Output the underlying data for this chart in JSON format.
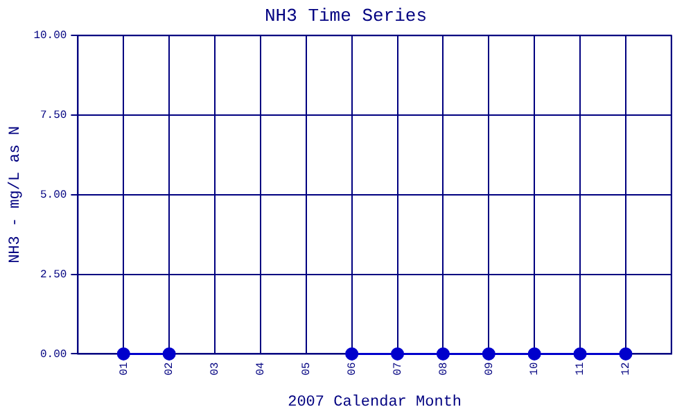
{
  "chart_data": {
    "type": "line",
    "title": "NH3 Time Series",
    "xlabel": "2007 Calendar Month",
    "ylabel": "NH3 - mg/L as N",
    "categories": [
      "01",
      "02",
      "03",
      "04",
      "05",
      "06",
      "07",
      "08",
      "09",
      "10",
      "11",
      "12"
    ],
    "series": [
      {
        "color": "#0000cc",
        "values": [
          0,
          0,
          null,
          null,
          null,
          0,
          0,
          0,
          0,
          0,
          0,
          0
        ]
      }
    ],
    "ylim": [
      0,
      10
    ],
    "yticks": [
      {
        "value": 0,
        "label": "0.00"
      },
      {
        "value": 2.5,
        "label": "2.50"
      },
      {
        "value": 5,
        "label": "5.00"
      },
      {
        "value": 7.5,
        "label": "7.50"
      },
      {
        "value": 10,
        "label": "10.00"
      }
    ],
    "grid": true,
    "legend": false,
    "marker": "circle",
    "line_style": "solid"
  }
}
